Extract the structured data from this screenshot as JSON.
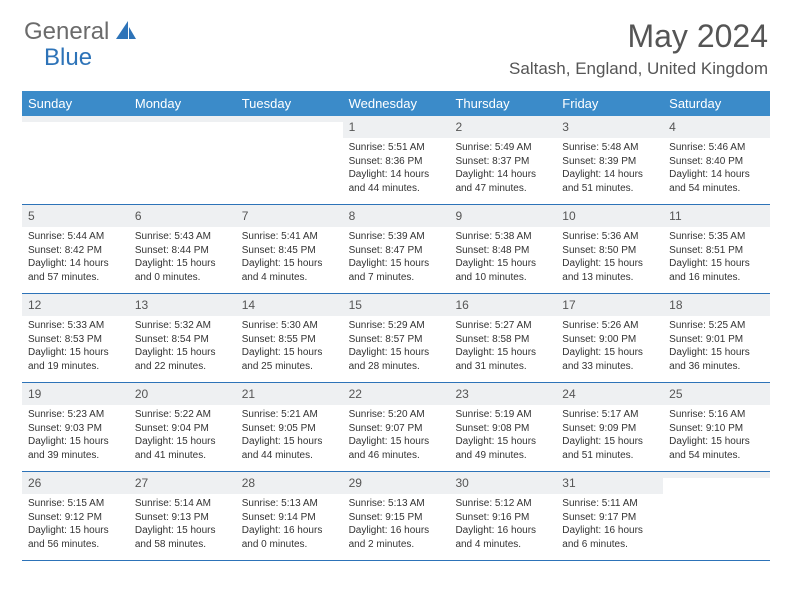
{
  "logo": {
    "text1": "General",
    "text2": "Blue",
    "color1": "#6b6b6b",
    "color2": "#2d73b8"
  },
  "title": "May 2024",
  "location": "Saltash, England, United Kingdom",
  "header_bg": "#3b8bc9",
  "daynum_bg": "#eef0f2",
  "border_color": "#2d73b8",
  "day_names": [
    "Sunday",
    "Monday",
    "Tuesday",
    "Wednesday",
    "Thursday",
    "Friday",
    "Saturday"
  ],
  "weeks": [
    [
      null,
      null,
      null,
      {
        "n": "1",
        "sr": "5:51 AM",
        "ss": "8:36 PM",
        "dl": "14 hours and 44 minutes."
      },
      {
        "n": "2",
        "sr": "5:49 AM",
        "ss": "8:37 PM",
        "dl": "14 hours and 47 minutes."
      },
      {
        "n": "3",
        "sr": "5:48 AM",
        "ss": "8:39 PM",
        "dl": "14 hours and 51 minutes."
      },
      {
        "n": "4",
        "sr": "5:46 AM",
        "ss": "8:40 PM",
        "dl": "14 hours and 54 minutes."
      }
    ],
    [
      {
        "n": "5",
        "sr": "5:44 AM",
        "ss": "8:42 PM",
        "dl": "14 hours and 57 minutes."
      },
      {
        "n": "6",
        "sr": "5:43 AM",
        "ss": "8:44 PM",
        "dl": "15 hours and 0 minutes."
      },
      {
        "n": "7",
        "sr": "5:41 AM",
        "ss": "8:45 PM",
        "dl": "15 hours and 4 minutes."
      },
      {
        "n": "8",
        "sr": "5:39 AM",
        "ss": "8:47 PM",
        "dl": "15 hours and 7 minutes."
      },
      {
        "n": "9",
        "sr": "5:38 AM",
        "ss": "8:48 PM",
        "dl": "15 hours and 10 minutes."
      },
      {
        "n": "10",
        "sr": "5:36 AM",
        "ss": "8:50 PM",
        "dl": "15 hours and 13 minutes."
      },
      {
        "n": "11",
        "sr": "5:35 AM",
        "ss": "8:51 PM",
        "dl": "15 hours and 16 minutes."
      }
    ],
    [
      {
        "n": "12",
        "sr": "5:33 AM",
        "ss": "8:53 PM",
        "dl": "15 hours and 19 minutes."
      },
      {
        "n": "13",
        "sr": "5:32 AM",
        "ss": "8:54 PM",
        "dl": "15 hours and 22 minutes."
      },
      {
        "n": "14",
        "sr": "5:30 AM",
        "ss": "8:55 PM",
        "dl": "15 hours and 25 minutes."
      },
      {
        "n": "15",
        "sr": "5:29 AM",
        "ss": "8:57 PM",
        "dl": "15 hours and 28 minutes."
      },
      {
        "n": "16",
        "sr": "5:27 AM",
        "ss": "8:58 PM",
        "dl": "15 hours and 31 minutes."
      },
      {
        "n": "17",
        "sr": "5:26 AM",
        "ss": "9:00 PM",
        "dl": "15 hours and 33 minutes."
      },
      {
        "n": "18",
        "sr": "5:25 AM",
        "ss": "9:01 PM",
        "dl": "15 hours and 36 minutes."
      }
    ],
    [
      {
        "n": "19",
        "sr": "5:23 AM",
        "ss": "9:03 PM",
        "dl": "15 hours and 39 minutes."
      },
      {
        "n": "20",
        "sr": "5:22 AM",
        "ss": "9:04 PM",
        "dl": "15 hours and 41 minutes."
      },
      {
        "n": "21",
        "sr": "5:21 AM",
        "ss": "9:05 PM",
        "dl": "15 hours and 44 minutes."
      },
      {
        "n": "22",
        "sr": "5:20 AM",
        "ss": "9:07 PM",
        "dl": "15 hours and 46 minutes."
      },
      {
        "n": "23",
        "sr": "5:19 AM",
        "ss": "9:08 PM",
        "dl": "15 hours and 49 minutes."
      },
      {
        "n": "24",
        "sr": "5:17 AM",
        "ss": "9:09 PM",
        "dl": "15 hours and 51 minutes."
      },
      {
        "n": "25",
        "sr": "5:16 AM",
        "ss": "9:10 PM",
        "dl": "15 hours and 54 minutes."
      }
    ],
    [
      {
        "n": "26",
        "sr": "5:15 AM",
        "ss": "9:12 PM",
        "dl": "15 hours and 56 minutes."
      },
      {
        "n": "27",
        "sr": "5:14 AM",
        "ss": "9:13 PM",
        "dl": "15 hours and 58 minutes."
      },
      {
        "n": "28",
        "sr": "5:13 AM",
        "ss": "9:14 PM",
        "dl": "16 hours and 0 minutes."
      },
      {
        "n": "29",
        "sr": "5:13 AM",
        "ss": "9:15 PM",
        "dl": "16 hours and 2 minutes."
      },
      {
        "n": "30",
        "sr": "5:12 AM",
        "ss": "9:16 PM",
        "dl": "16 hours and 4 minutes."
      },
      {
        "n": "31",
        "sr": "5:11 AM",
        "ss": "9:17 PM",
        "dl": "16 hours and 6 minutes."
      },
      null
    ]
  ],
  "labels": {
    "sunrise": "Sunrise:",
    "sunset": "Sunset:",
    "daylight": "Daylight:"
  }
}
